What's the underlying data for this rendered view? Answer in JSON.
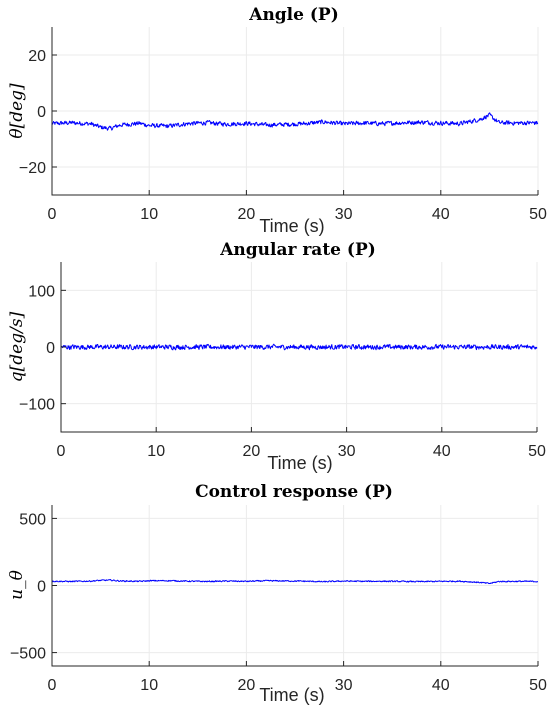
{
  "chart_data": [
    {
      "type": "line",
      "title": "Angle (P)",
      "xlabel": "Time (s)",
      "ylabel": "θ[deg]",
      "xlim": [
        0,
        50
      ],
      "ylim": [
        -30,
        30
      ],
      "xticks": [
        "0",
        "10",
        "20",
        "30",
        "40",
        "50"
      ],
      "yticks": [
        "20",
        "0",
        "−20"
      ],
      "grid": true,
      "series": [
        {
          "color": "#0000ff",
          "x": [
            0,
            2,
            4,
            5,
            6,
            7,
            9,
            10,
            12,
            14,
            16,
            18,
            20,
            22,
            24,
            26,
            28,
            30,
            32,
            34,
            36,
            38,
            40,
            42,
            44,
            45,
            46,
            48,
            50
          ],
          "y": [
            -4.5,
            -4.2,
            -4.6,
            -5.8,
            -6.3,
            -5.0,
            -4.4,
            -5.2,
            -5.4,
            -4.5,
            -4.2,
            -4.7,
            -4.4,
            -5.0,
            -4.8,
            -4.5,
            -3.9,
            -4.6,
            -4.3,
            -4.5,
            -4.2,
            -4.0,
            -4.3,
            -4.5,
            -3.0,
            -1.5,
            -4.2,
            -4.3,
            -4.2
          ],
          "noise": 1.0
        }
      ]
    },
    {
      "type": "line",
      "title": "Angular rate (P)",
      "xlabel": "Time (s)",
      "ylabel": "q[deg/s]",
      "xlim": [
        0,
        50
      ],
      "ylim": [
        -150,
        150
      ],
      "xticks": [
        "0",
        "10",
        "20",
        "30",
        "40",
        "50"
      ],
      "yticks": [
        "100",
        "0",
        "−100"
      ],
      "grid": true,
      "series": [
        {
          "color": "#0000ff",
          "x": [
            0,
            10,
            20,
            30,
            40,
            50
          ],
          "y": [
            0,
            0,
            0,
            0,
            0,
            0
          ],
          "noise": 5.5
        }
      ]
    },
    {
      "type": "line",
      "title": "Control response (P)",
      "xlabel": "Time (s)",
      "ylabel": "u_θ",
      "xlim": [
        0,
        50
      ],
      "ylim": [
        -600,
        600
      ],
      "xticks": [
        "0",
        "10",
        "20",
        "30",
        "40",
        "50"
      ],
      "yticks": [
        "500",
        "0",
        "−500"
      ],
      "grid": true,
      "series": [
        {
          "color": "#0000ff",
          "x": [
            0,
            2,
            4,
            5,
            6,
            7,
            9,
            10,
            12,
            14,
            16,
            18,
            20,
            22,
            24,
            26,
            28,
            30,
            32,
            34,
            36,
            38,
            40,
            42,
            44,
            45,
            46,
            48,
            50
          ],
          "y": [
            32,
            30,
            33,
            38,
            40,
            34,
            31,
            35,
            36,
            32,
            30,
            33,
            31,
            35,
            34,
            32,
            28,
            33,
            31,
            32,
            30,
            29,
            31,
            32,
            23,
            15,
            30,
            31,
            30
          ],
          "noise": 6
        }
      ]
    }
  ]
}
